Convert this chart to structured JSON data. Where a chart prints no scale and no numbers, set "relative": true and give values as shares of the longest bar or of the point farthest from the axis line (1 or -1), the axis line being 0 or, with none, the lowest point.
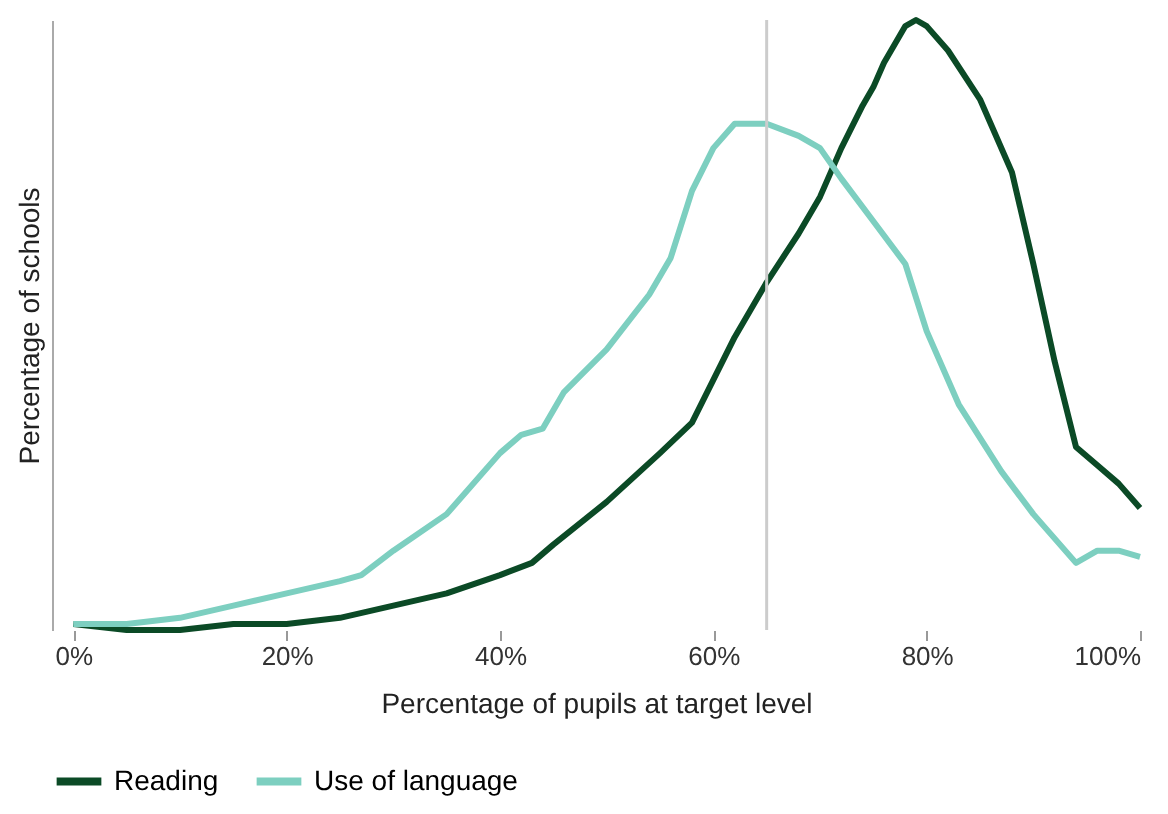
{
  "chart_data": {
    "type": "line",
    "relative": true,
    "xlabel": "Percentage of pupils at target level",
    "ylabel": "Percentage of schools",
    "xlim": [
      -2,
      100
    ],
    "xticks": [
      {
        "value": 0,
        "label": "0%"
      },
      {
        "value": 20,
        "label": "20%"
      },
      {
        "value": 40,
        "label": "40%"
      },
      {
        "value": 60,
        "label": "60%"
      },
      {
        "value": 80,
        "label": "80%"
      },
      {
        "value": 100,
        "label": "100%"
      }
    ],
    "grid": false,
    "legend": "bottom left",
    "line_style": "solid",
    "marker": "none",
    "ref_lines": [
      {
        "axis": "x",
        "value": 65,
        "label": null,
        "color": "#cccccc"
      }
    ],
    "series": [
      {
        "name": "Reading",
        "color": "#0b4a26",
        "x": [
          0,
          5,
          10,
          15,
          20,
          25,
          30,
          35,
          40,
          43,
          45,
          50,
          55,
          58,
          60,
          62,
          65,
          68,
          70,
          72,
          74,
          75,
          76,
          78,
          79,
          80,
          82,
          85,
          88,
          90,
          92,
          94,
          96,
          98,
          100
        ],
        "values": [
          0.01,
          0,
          0,
          0.01,
          0.01,
          0.02,
          0.04,
          0.06,
          0.09,
          0.11,
          0.14,
          0.21,
          0.29,
          0.34,
          0.41,
          0.48,
          0.57,
          0.65,
          0.71,
          0.79,
          0.86,
          0.89,
          0.93,
          0.99,
          1,
          0.99,
          0.95,
          0.87,
          0.75,
          0.6,
          0.44,
          0.3,
          0.27,
          0.24,
          0.2
        ]
      },
      {
        "name": "Use of language",
        "color": "#7dcfc0",
        "x": [
          0,
          5,
          10,
          15,
          20,
          25,
          27,
          30,
          35,
          40,
          42,
          44,
          46,
          50,
          54,
          56,
          58,
          60,
          62,
          63,
          65,
          68,
          70,
          72,
          75,
          78,
          80,
          83,
          87,
          90,
          94,
          96,
          98,
          100
        ],
        "values": [
          0.01,
          0.01,
          0.02,
          0.04,
          0.06,
          0.08,
          0.09,
          0.13,
          0.19,
          0.29,
          0.32,
          0.33,
          0.39,
          0.46,
          0.55,
          0.61,
          0.72,
          0.79,
          0.83,
          0.83,
          0.83,
          0.81,
          0.79,
          0.74,
          0.67,
          0.6,
          0.49,
          0.37,
          0.26,
          0.19,
          0.11,
          0.13,
          0.13,
          0.12
        ]
      }
    ]
  }
}
